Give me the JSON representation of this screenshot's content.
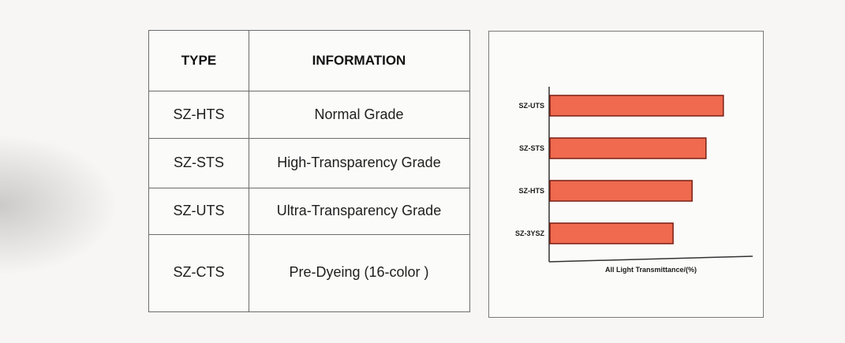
{
  "table": {
    "headers": [
      "TYPE",
      "INFORMATION"
    ],
    "rows": [
      {
        "type": "SZ-HTS",
        "info": "Normal Grade"
      },
      {
        "type": "SZ-STS",
        "info": "High-Transparency Grade"
      },
      {
        "type": "SZ-UTS",
        "info": "Ultra-Transparency Grade"
      },
      {
        "type": "SZ-CTS",
        "info": "Pre-Dyeing (16-color )"
      }
    ]
  },
  "chart_data": {
    "type": "bar",
    "orientation": "horizontal",
    "categories": [
      "SZ-UTS",
      "SZ-STS",
      "SZ-HTS",
      "SZ-3YSZ"
    ],
    "values": [
      100,
      90,
      82,
      71
    ],
    "xlabel": "All Light Transmittance/(%)",
    "ylabel": "",
    "title": "",
    "xlim": [
      0,
      106
    ],
    "grid": false,
    "colors": {
      "bar_fill": "#ef6a4f",
      "bar_stroke": "#7a1e12"
    }
  }
}
